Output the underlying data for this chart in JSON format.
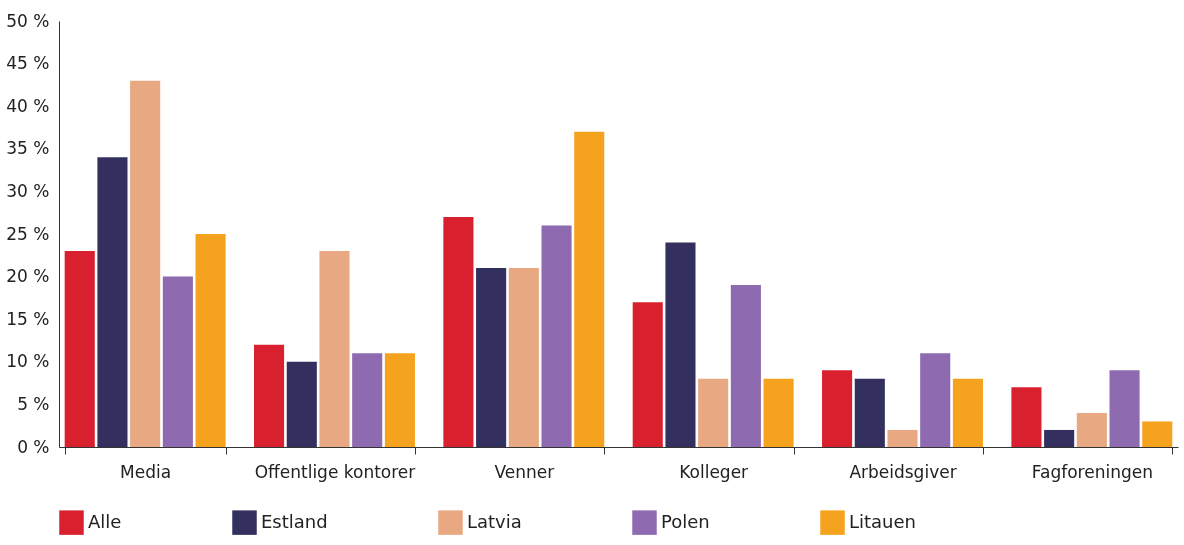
{
  "chart_data": {
    "type": "bar",
    "categories": [
      "Media",
      "Offentlige kontorer",
      "Venner",
      "Kolleger",
      "Arbeidsgiver",
      "Fagforeningen"
    ],
    "series": [
      {
        "name": "Alle",
        "color": "#d9202f",
        "values": [
          23,
          12,
          27,
          17,
          9,
          7
        ]
      },
      {
        "name": "Estland",
        "color": "#33305f",
        "values": [
          34,
          10,
          21,
          24,
          8,
          2
        ]
      },
      {
        "name": "Latvia",
        "color": "#e8a882",
        "values": [
          43,
          23,
          21,
          8,
          2,
          4
        ]
      },
      {
        "name": "Polen",
        "color": "#8e6bb0",
        "values": [
          20,
          11,
          26,
          19,
          11,
          9
        ]
      },
      {
        "name": "Litauen",
        "color": "#f5a31e",
        "values": [
          25,
          11,
          37,
          8,
          8,
          3
        ]
      }
    ],
    "ylim": [
      0,
      50
    ],
    "yticks": [
      {
        "value": 0,
        "label": "0 %"
      },
      {
        "value": 5,
        "label": "5 %"
      },
      {
        "value": 10,
        "label": "10 %"
      },
      {
        "value": 15,
        "label": "15 %"
      },
      {
        "value": 20,
        "label": "20 %"
      },
      {
        "value": 25,
        "label": "25 %"
      },
      {
        "value": 30,
        "label": "30 %"
      },
      {
        "value": 35,
        "label": "35 %"
      },
      {
        "value": 40,
        "label": "40 %"
      },
      {
        "value": 45,
        "label": "45 %"
      },
      {
        "value": 50,
        "label": "50 %"
      }
    ],
    "grid": false,
    "legend": "bottom"
  }
}
